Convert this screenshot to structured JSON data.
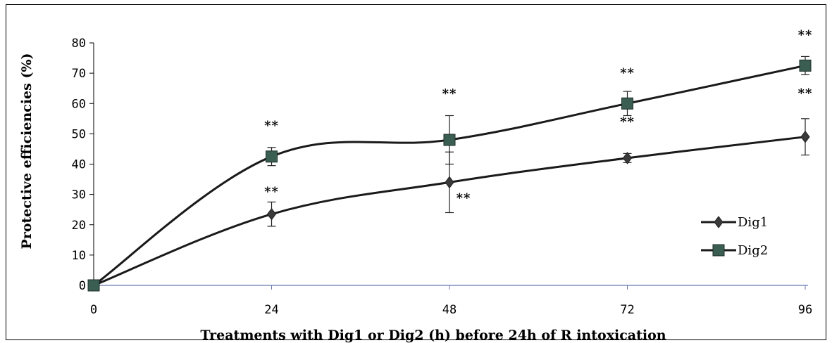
{
  "chart_data": {
    "type": "line",
    "title": "",
    "xlabel": "Treatments with Dig1 or Dig2 (h) before 24h of R intoxication",
    "ylabel": "Protective efficiencies (%)",
    "x": [
      0,
      24,
      48,
      72,
      96
    ],
    "x_tick_labels": [
      "0",
      "24",
      "48",
      "72",
      "96"
    ],
    "ylim": [
      0,
      80
    ],
    "y_ticks": [
      0,
      10,
      20,
      30,
      40,
      50,
      60,
      70,
      80
    ],
    "y_tick_labels": [
      "0",
      "10",
      "20",
      "30",
      "40",
      "50",
      "60",
      "70",
      "80"
    ],
    "grid": false,
    "legend_position": "right",
    "series": [
      {
        "name": "Dig1",
        "marker": "diamond",
        "color": "#3a3a3a",
        "values": [
          0,
          23.5,
          34,
          42,
          49
        ],
        "errors": [
          0,
          4,
          10,
          1.5,
          6
        ],
        "annotations": [
          "",
          "**",
          "**",
          "**",
          "**"
        ]
      },
      {
        "name": "Dig2",
        "marker": "square",
        "color": "#3b5e52",
        "values": [
          0,
          42.5,
          48,
          60,
          72.5
        ],
        "errors": [
          0,
          3,
          8,
          4,
          3
        ],
        "annotations": [
          "",
          "**",
          "**",
          "**",
          "**"
        ]
      }
    ]
  }
}
